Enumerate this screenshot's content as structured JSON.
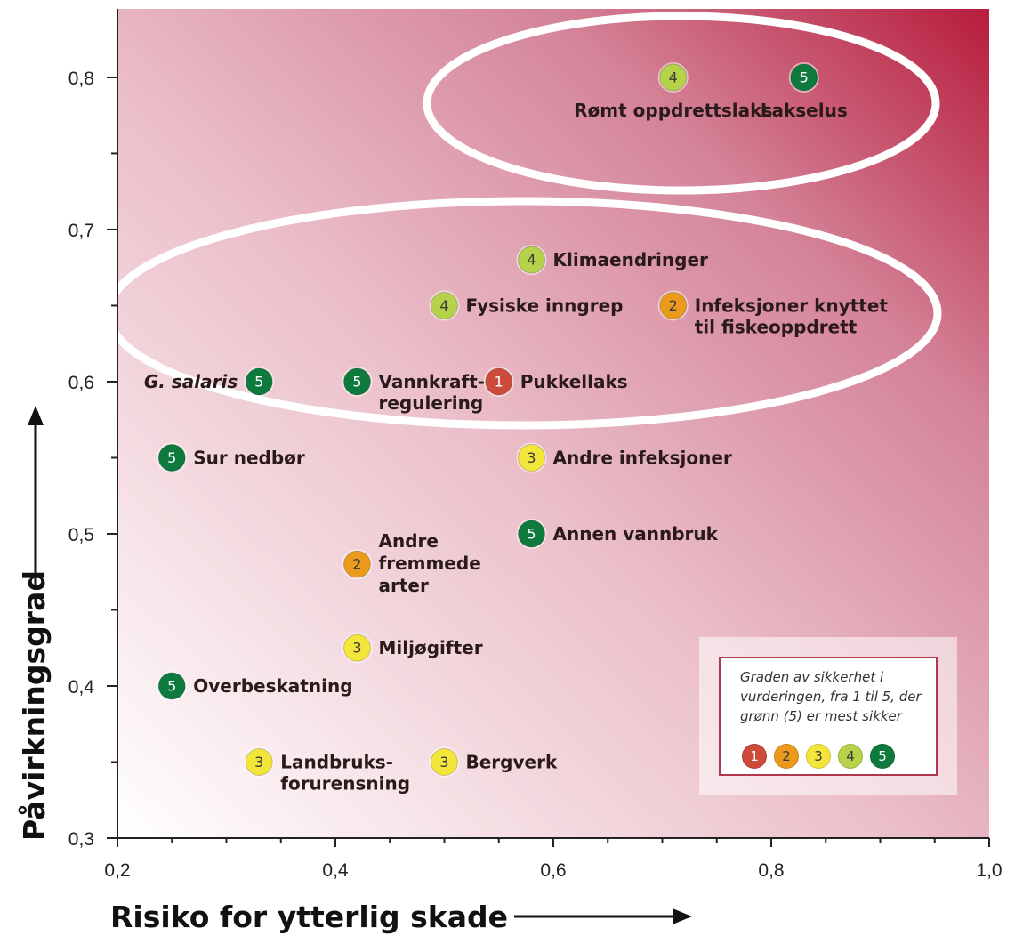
{
  "chart_data": {
    "type": "scatter",
    "title": "",
    "xlabel": "Risiko for ytterlig skade",
    "ylabel": "Påvirkningsgrad",
    "xlim": [
      0.2,
      1.0
    ],
    "ylim": [
      0.3,
      0.8
    ],
    "xticks": [
      "0,2",
      "0,4",
      "0,6",
      "0,8",
      "1,0"
    ],
    "yticks": [
      "0,3",
      "0,4",
      "0,5",
      "0,6",
      "0,7",
      "0,8"
    ],
    "points": [
      {
        "label": [
          "Rømt oppdrettslaks"
        ],
        "x": 0.71,
        "y": 0.8,
        "certainty": 4
      },
      {
        "label": [
          "Lakselus"
        ],
        "x": 0.83,
        "y": 0.8,
        "certainty": 5
      },
      {
        "label": [
          "Klimaendringer"
        ],
        "x": 0.58,
        "y": 0.68,
        "certainty": 4
      },
      {
        "label": [
          "Fysiske inngrep"
        ],
        "x": 0.5,
        "y": 0.65,
        "certainty": 4
      },
      {
        "label": [
          "Infeksjoner knyttet",
          "til fiskeoppdrett"
        ],
        "x": 0.71,
        "y": 0.65,
        "certainty": 2
      },
      {
        "label": [
          "G. salaris"
        ],
        "x": 0.33,
        "y": 0.6,
        "certainty": 5,
        "italic": true
      },
      {
        "label": [
          "Vannkraft-",
          "regulering"
        ],
        "x": 0.42,
        "y": 0.6,
        "certainty": 5
      },
      {
        "label": [
          "Pukkellaks"
        ],
        "x": 0.55,
        "y": 0.6,
        "certainty": 1
      },
      {
        "label": [
          "Sur nedbør"
        ],
        "x": 0.25,
        "y": 0.55,
        "certainty": 5
      },
      {
        "label": [
          "Andre infeksjoner"
        ],
        "x": 0.58,
        "y": 0.55,
        "certainty": 3
      },
      {
        "label": [
          "Annen vannbruk"
        ],
        "x": 0.58,
        "y": 0.5,
        "certainty": 5
      },
      {
        "label": [
          "Andre",
          "fremmede",
          "arter"
        ],
        "x": 0.42,
        "y": 0.48,
        "certainty": 2
      },
      {
        "label": [
          "Miljøgifter"
        ],
        "x": 0.42,
        "y": 0.425,
        "certainty": 3
      },
      {
        "label": [
          "Overbeskatning"
        ],
        "x": 0.25,
        "y": 0.4,
        "certainty": 5
      },
      {
        "label": [
          "Landbruks-",
          "forurensning"
        ],
        "x": 0.33,
        "y": 0.35,
        "certainty": 3
      },
      {
        "label": [
          "Bergverk"
        ],
        "x": 0.5,
        "y": 0.35,
        "certainty": 3
      }
    ],
    "certainty_colors": {
      "1": "#cc4b3a",
      "2": "#ec9a1c",
      "3": "#f4e53a",
      "4": "#b6d14a",
      "5": "#0f7a3d"
    },
    "background_gradient": {
      "from": "#ffffff",
      "to": "#b71c3c"
    },
    "legend": {
      "text": "Graden av sikkerhet i vurderingen, fra 1 til 5, der grønn (5) er mest sikker",
      "levels": [
        "1",
        "2",
        "3",
        "4",
        "5"
      ],
      "placement": "bottom-right"
    },
    "grid": false
  }
}
